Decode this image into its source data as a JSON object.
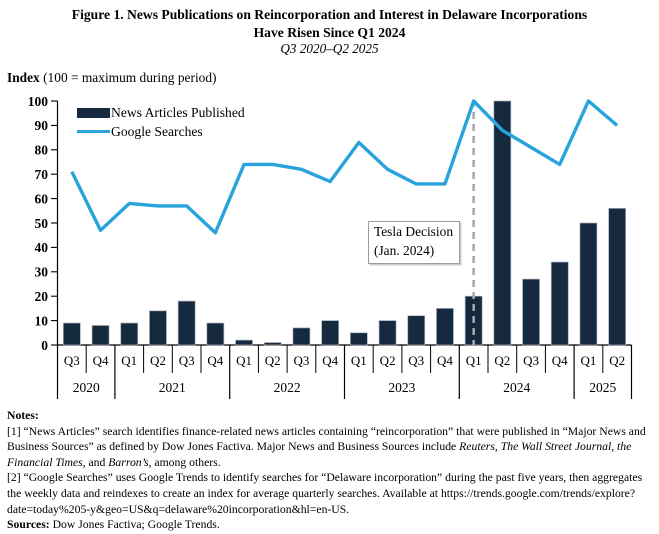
{
  "title": {
    "line1": "Figure 1. News Publications on Reincorporation and Interest in Delaware Incorporations",
    "line2": "Have Risen Since Q1 2024",
    "subtitle": "Q3 2020–Q2 2025"
  },
  "axis_caption": {
    "bold": "Index",
    "rest": " (100 = maximum during period)"
  },
  "chart_data": {
    "type": "bar+line",
    "categories_quarters": [
      "Q3",
      "Q4",
      "Q1",
      "Q2",
      "Q3",
      "Q4",
      "Q1",
      "Q2",
      "Q3",
      "Q4",
      "Q1",
      "Q2",
      "Q3",
      "Q4",
      "Q1",
      "Q2",
      "Q3",
      "Q4",
      "Q1",
      "Q2"
    ],
    "year_groups": [
      {
        "label": "2020",
        "count": 2
      },
      {
        "label": "2021",
        "count": 4
      },
      {
        "label": "2022",
        "count": 4
      },
      {
        "label": "2023",
        "count": 4
      },
      {
        "label": "2024",
        "count": 4
      },
      {
        "label": "2025",
        "count": 2
      }
    ],
    "ylim": [
      0,
      100
    ],
    "yticks": [
      100,
      90,
      80,
      70,
      60,
      50,
      40,
      30,
      20,
      10,
      0
    ],
    "grid": false,
    "legend_position": "top-left-inside",
    "series": [
      {
        "name": "News Articles Published",
        "type": "bar",
        "values": [
          9,
          8,
          9,
          14,
          18,
          9,
          2,
          1,
          7,
          10,
          5,
          10,
          12,
          15,
          20,
          100,
          27,
          34,
          50,
          56
        ]
      },
      {
        "name": "Google Searches",
        "type": "line",
        "values": [
          71,
          47,
          58,
          57,
          57,
          46,
          74,
          74,
          72,
          67,
          83,
          72,
          66,
          66,
          100,
          88,
          81,
          74,
          100,
          90
        ]
      }
    ],
    "annotation": {
      "line1": "Tesla Decision",
      "line2": "(Jan. 2024)",
      "quarter": "Q1 2024",
      "quarter_index": 14
    },
    "colors": {
      "bar": "#15293F",
      "bar_outline": "#A7AEB8",
      "line": "#29A3DC",
      "dashed_line": "#A8A8A8",
      "axis": "#000000"
    }
  },
  "notes": {
    "heading": "Notes:",
    "note1_segments": [
      {
        "t": "[1] “News Articles” search identifies finance-related news articles containing “reincorporation” that were published in “Major News and Business Sources” as defined by Dow Jones Factiva. Major News and Business Sources include ",
        "i": false
      },
      {
        "t": "Reuters",
        "i": true
      },
      {
        "t": ", ",
        "i": false
      },
      {
        "t": "The Wall Street Journal",
        "i": true
      },
      {
        "t": ", ",
        "i": false
      },
      {
        "t": "the Financial Times",
        "i": true
      },
      {
        "t": ", and ",
        "i": false
      },
      {
        "t": "Barron’s",
        "i": true
      },
      {
        "t": ", among others.",
        "i": false
      }
    ],
    "note2": "[2] “Google Searches” uses Google Trends to identify searches for “Delaware incorporation” during the past five years, then aggregates the weekly data and reindexes to create an index for average quarterly searches. Available at https://trends.google.com/trends/explore?date=today%205-y&geo=US&q=delaware%20incorporation&hl=en-US.",
    "sources_label": "Sources:",
    "sources_text": " Dow Jones Factiva; Google Trends."
  }
}
